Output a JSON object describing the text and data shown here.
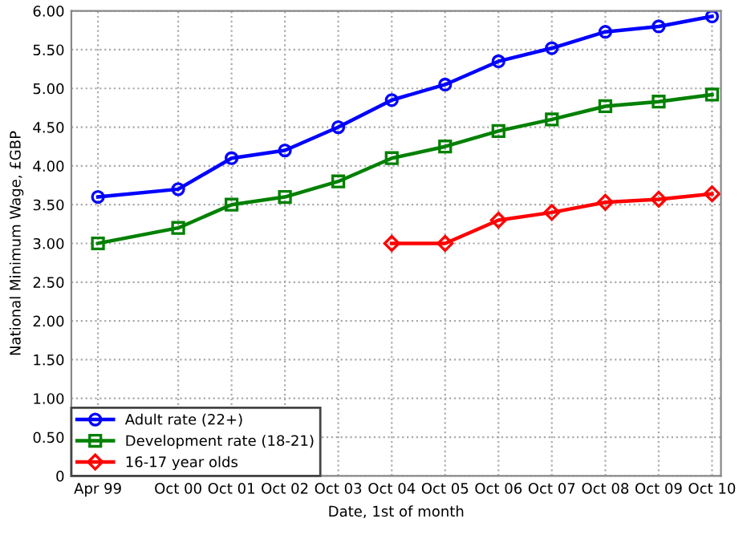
{
  "chart_data": {
    "type": "line",
    "xlabel": "Date, 1st of month",
    "ylabel": "National Minimum Wage, £GBP",
    "xlim": [
      "1998-10",
      "2010-12"
    ],
    "ylim": [
      0,
      6
    ],
    "xticks": [
      {
        "value": "1999-04",
        "label": "Apr 99"
      },
      {
        "value": "2000-10",
        "label": "Oct 00"
      },
      {
        "value": "2001-10",
        "label": "Oct 01"
      },
      {
        "value": "2002-10",
        "label": "Oct 02"
      },
      {
        "value": "2003-10",
        "label": "Oct 03"
      },
      {
        "value": "2004-10",
        "label": "Oct 04"
      },
      {
        "value": "2005-10",
        "label": "Oct 05"
      },
      {
        "value": "2006-10",
        "label": "Oct 06"
      },
      {
        "value": "2007-10",
        "label": "Oct 07"
      },
      {
        "value": "2008-10",
        "label": "Oct 08"
      },
      {
        "value": "2009-10",
        "label": "Oct 09"
      },
      {
        "value": "2010-10",
        "label": "Oct 10"
      }
    ],
    "yticks": [
      0,
      {
        "value": 0.5,
        "label": "0.50"
      },
      {
        "value": 1,
        "label": "1.00"
      },
      {
        "value": 1.5,
        "label": "1.50"
      },
      {
        "value": 2,
        "label": "2.00"
      },
      {
        "value": 2.5,
        "label": "2.50"
      },
      {
        "value": 3,
        "label": "3.00"
      },
      {
        "value": 3.5,
        "label": "3.50"
      },
      {
        "value": 4,
        "label": "4.00"
      },
      {
        "value": 4.5,
        "label": "4.50"
      },
      {
        "value": 5,
        "label": "5.00"
      },
      {
        "value": 5.5,
        "label": "5.50"
      },
      {
        "value": 6,
        "label": "6.00"
      }
    ],
    "x": [
      "1999-04",
      "2000-10",
      "2001-10",
      "2002-10",
      "2003-10",
      "2004-10",
      "2005-10",
      "2006-10",
      "2007-10",
      "2008-10",
      "2009-10",
      "2010-10"
    ],
    "grid": true,
    "legend": "bottom left",
    "line_style": "solid",
    "series": [
      {
        "name": "Adult rate (22+)",
        "color": "#0000ff",
        "marker": "circle",
        "values": [
          3.6,
          3.7,
          4.1,
          4.2,
          4.5,
          4.85,
          5.05,
          5.35,
          5.52,
          5.73,
          5.8,
          5.93
        ]
      },
      {
        "name": "Development rate (18-21)",
        "color": "#008000",
        "marker": "square",
        "values": [
          3.0,
          3.2,
          3.5,
          3.6,
          3.8,
          4.1,
          4.25,
          4.45,
          4.6,
          4.77,
          4.83,
          4.92
        ]
      },
      {
        "name": "16-17 year olds",
        "color": "#ff0000",
        "marker": "diamond",
        "values": [
          null,
          null,
          null,
          null,
          null,
          3.0,
          3.0,
          3.3,
          3.4,
          3.53,
          3.57,
          3.64
        ]
      }
    ]
  }
}
